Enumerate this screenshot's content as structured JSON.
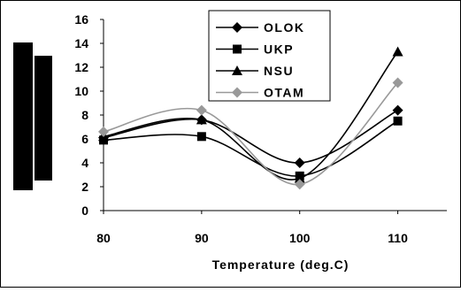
{
  "chart_data": {
    "type": "line",
    "title": "",
    "xlabel": "Temperature (deg.C)",
    "ylabel": "",
    "x": [
      80,
      90,
      100,
      110
    ],
    "x_ticks": [
      "80",
      "90",
      "100",
      "110"
    ],
    "y_ticks": [
      "0",
      "2",
      "4",
      "6",
      "8",
      "10",
      "12",
      "14",
      "16"
    ],
    "xlim": [
      80,
      115
    ],
    "ylim": [
      0,
      16
    ],
    "grid": false,
    "legend_position": "top-center",
    "series": [
      {
        "name": "OLOK",
        "marker": "diamond",
        "color": "#000000",
        "values": [
          6.1,
          7.6,
          4.0,
          8.4
        ]
      },
      {
        "name": "UKP",
        "marker": "square",
        "color": "#000000",
        "values": [
          5.9,
          6.2,
          2.9,
          7.5
        ]
      },
      {
        "name": "NSU",
        "marker": "triangle",
        "color": "#000000",
        "values": [
          6.2,
          7.6,
          2.7,
          13.3
        ]
      },
      {
        "name": "OTAM",
        "marker": "diamond",
        "color": "#999999",
        "values": [
          6.6,
          8.4,
          2.2,
          10.7
        ]
      }
    ]
  }
}
